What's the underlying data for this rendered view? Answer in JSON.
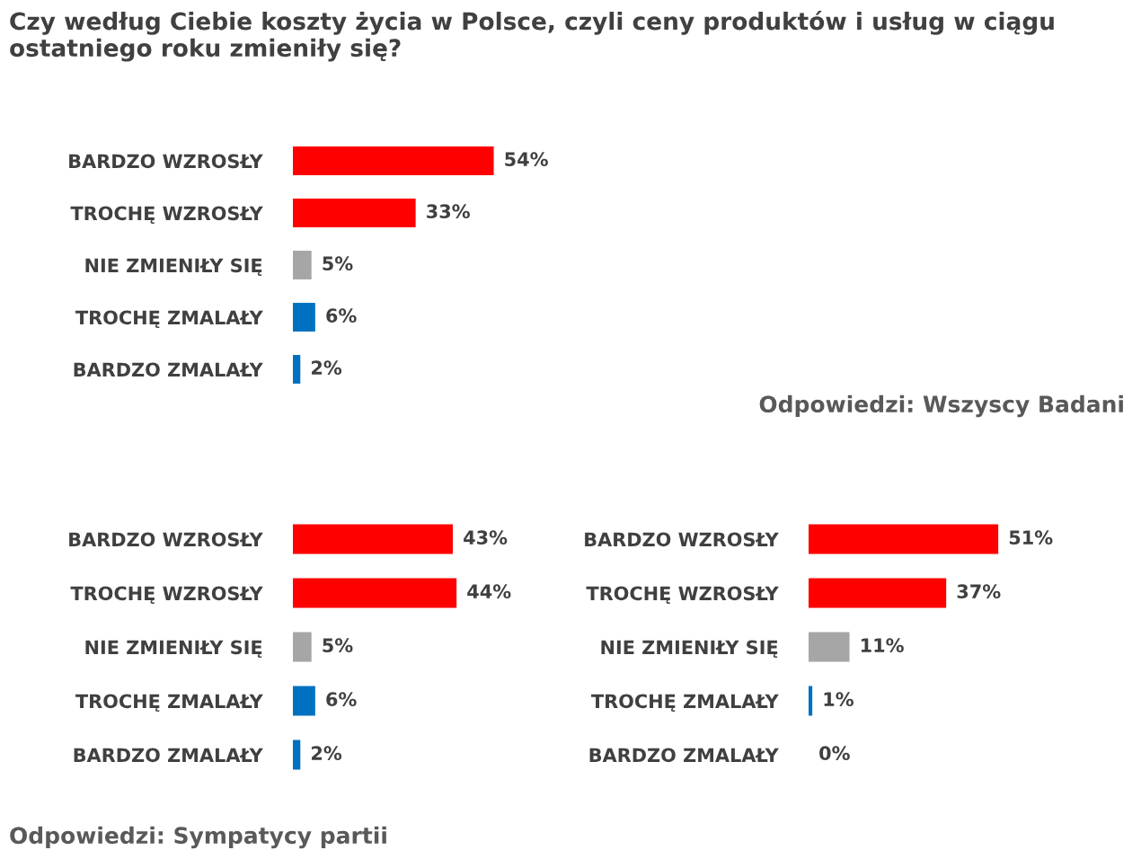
{
  "chart_data": [
    {
      "type": "bar",
      "orientation": "horizontal",
      "title": "Czy według Ciebie koszty życia w Polsce, czyli ceny produktów i usług w ciągu ostatniego roku zmieniły się?",
      "categories": [
        "BARDZO WZROSŁY",
        "TROCHĘ WZROSŁY",
        "NIE ZMIENIŁY SIĘ",
        "TROCHĘ ZMALAŁY",
        "BARDZO ZMALAŁY"
      ],
      "values": [
        54,
        33,
        5,
        6,
        2
      ],
      "colors": [
        "#ff0000",
        "#ff0000",
        "#a6a6a6",
        "#0070c0",
        "#0070c0"
      ],
      "value_labels": [
        "54%",
        "33%",
        "5%",
        "6%",
        "2%"
      ],
      "annotations": [
        "Odpowiedzi: Wszyscy Badani"
      ],
      "grid": false,
      "legend": false
    },
    {
      "type": "bar",
      "orientation": "horizontal",
      "categories": [
        "BARDZO WZROSŁY",
        "TROCHĘ WZROSŁY",
        "NIE ZMIENIŁY SIĘ",
        "TROCHĘ ZMALAŁY",
        "BARDZO ZMALAŁY"
      ],
      "values": [
        43,
        44,
        5,
        6,
        2
      ],
      "colors": [
        "#ff0000",
        "#ff0000",
        "#a6a6a6",
        "#0070c0",
        "#0070c0"
      ],
      "value_labels": [
        "43%",
        "44%",
        "5%",
        "6%",
        "2%"
      ],
      "annotations": [
        "Odpowiedzi: Sympatycy partii"
      ],
      "grid": false,
      "legend": false
    },
    {
      "type": "bar",
      "orientation": "horizontal",
      "categories": [
        "BARDZO WZROSŁY",
        "TROCHĘ WZROSŁY",
        "NIE ZMIENIŁY SIĘ",
        "TROCHĘ ZMALAŁY",
        "BARDZO ZMALAŁY"
      ],
      "values": [
        51,
        37,
        11,
        1,
        0
      ],
      "colors": [
        "#ff0000",
        "#ff0000",
        "#a6a6a6",
        "#0070c0",
        "#0070c0"
      ],
      "value_labels": [
        "51%",
        "37%",
        "11%",
        "1%",
        "0%"
      ],
      "grid": false,
      "legend": false
    }
  ]
}
